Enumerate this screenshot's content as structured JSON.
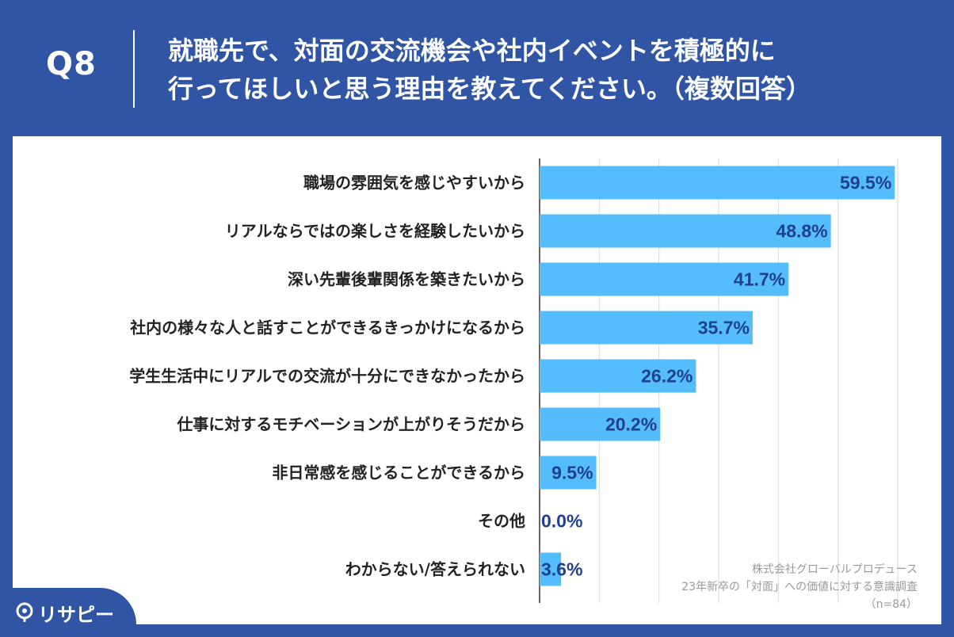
{
  "header": {
    "question_label": "Q8",
    "question_line1": "就職先で、対面の交流機会や社内イベントを積極的に",
    "question_line2": "行ってほしいと思う理由を教えてください。（複数回答）"
  },
  "source": {
    "line1": "株式会社グローバルプロデュース",
    "line2": "23年新卒の「対面」への価値に対する意識調査",
    "line3": "（n=84）"
  },
  "logo": {
    "text": "リサピー",
    "icon": "pin-icon"
  },
  "colors": {
    "header_bg": "#2f55a4",
    "bar": "#55bdfc",
    "value_label": "#1f3f8f",
    "category_label": "#222222",
    "grid": "#d9d9d9",
    "axis": "#333333"
  },
  "chart_data": {
    "type": "bar",
    "orientation": "horizontal",
    "categories": [
      "職場の雰囲気を感じやすいから",
      "リアルならではの楽しさを経験したいから",
      "深い先輩後輩関係を築きたいから",
      "社内の様々な人と話すことができるきっかけになるから",
      "学生生活中にリアルでの交流が十分にできなかったから",
      "仕事に対するモチベーションが上がりそうだから",
      "非日常感を感じることができるから",
      "その他",
      "わからない/答えられない"
    ],
    "values": [
      59.5,
      48.8,
      41.7,
      35.7,
      26.2,
      20.2,
      9.5,
      0.0,
      3.6
    ],
    "value_labels": [
      "59.5%",
      "48.8%",
      "41.7%",
      "35.7%",
      "26.2%",
      "20.2%",
      "9.5%",
      "0.0%",
      "3.6%"
    ],
    "xlim": [
      0,
      60
    ],
    "grid": true
  }
}
